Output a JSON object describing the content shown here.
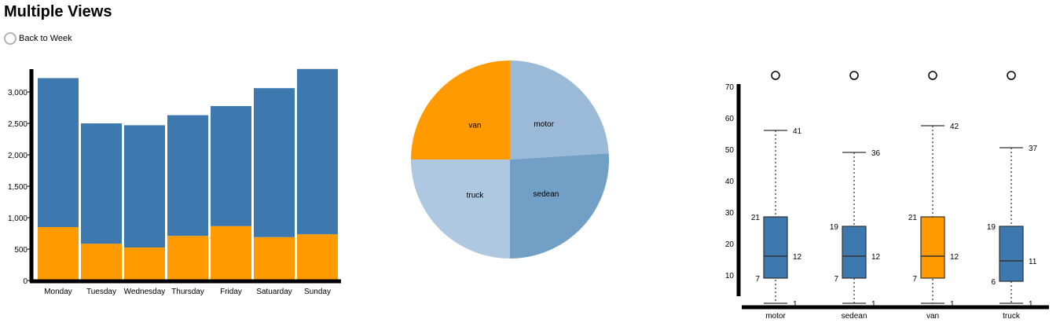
{
  "page": {
    "title": "Multiple Views",
    "back_label": "Back to Week"
  },
  "colors": {
    "blue": "#3d78ae",
    "orange": "#ff9a00",
    "axis": "#000000",
    "pie_motor": "#9abad8",
    "pie_sedean": "#719fc6",
    "pie_truck": "#adc8e0",
    "pie_van": "#ff9a00"
  },
  "chart_data": [
    {
      "type": "bar",
      "stacked": true,
      "categories": [
        "Monday",
        "Tuesday",
        "Wednesday",
        "Thursday",
        "Friday",
        "Satuarday",
        "Sunday"
      ],
      "series": [
        {
          "values": [
            850,
            585,
            525,
            710,
            865,
            690,
            735
          ]
        },
        {
          "values": [
            2370,
            1915,
            1945,
            1920,
            1910,
            2370,
            2630
          ]
        }
      ],
      "ylim": [
        0,
        3300
      ],
      "yticks": [
        0,
        500,
        1000,
        1500,
        2000,
        2500,
        3000
      ],
      "ytick_labels": [
        "0",
        "500",
        "1,000",
        "1,500",
        "2,000",
        "2,500",
        "3,000"
      ]
    },
    {
      "type": "pie",
      "slices": [
        {
          "label": "motor",
          "value": 24
        },
        {
          "label": "sedean",
          "value": 26
        },
        {
          "label": "truck",
          "value": 25
        },
        {
          "label": "van",
          "value": 25
        }
      ]
    },
    {
      "type": "boxplot",
      "categories": [
        "motor",
        "sedean",
        "van",
        "truck"
      ],
      "boxes": [
        {
          "min": 1,
          "q1": 9,
          "median": 16,
          "q3": 28.5,
          "max": 56,
          "outlier": 73.5,
          "label_min": "1",
          "label_q1": "7",
          "label_median": "12",
          "label_q3": "21",
          "label_max": "41"
        },
        {
          "min": 1,
          "q1": 9,
          "median": 16,
          "q3": 25.5,
          "max": 49,
          "outlier": 73.5,
          "label_min": "1",
          "label_q1": "7",
          "label_median": "12",
          "label_q3": "19",
          "label_max": "36"
        },
        {
          "min": 1,
          "q1": 9,
          "median": 16,
          "q3": 28.5,
          "max": 57.5,
          "outlier": 73.5,
          "label_min": "1",
          "label_q1": "7",
          "label_median": "12",
          "label_q3": "21",
          "label_max": "42"
        },
        {
          "min": 1,
          "q1": 8,
          "median": 14.5,
          "q3": 25.5,
          "max": 50.5,
          "outlier": 73.5,
          "label_min": "1",
          "label_q1": "6",
          "label_median": "11",
          "label_q3": "19",
          "label_max": "37"
        }
      ],
      "highlighted": "van",
      "ylim": [
        0,
        75
      ],
      "yticks": [
        10,
        20,
        30,
        40,
        50,
        60,
        70
      ]
    }
  ]
}
